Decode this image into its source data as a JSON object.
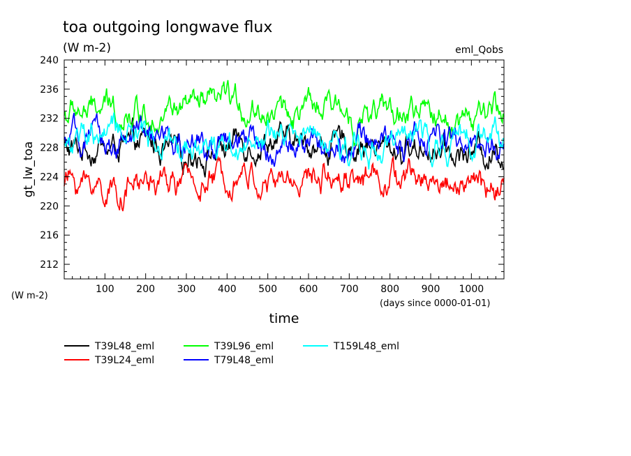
{
  "chart_data": {
    "type": "line",
    "title": "toa outgoing longwave flux",
    "subtitle": "(W m-2)",
    "experiment_label": "eml_Qobs",
    "ylabel": "gt_lw_toa",
    "yunits": "(W m-2)",
    "xlabel": "time",
    "xunits": "(days since 0000-01-01)",
    "xlim": [
      0,
      1080
    ],
    "ylim": [
      210,
      240
    ],
    "xticks": [
      100,
      200,
      300,
      400,
      500,
      600,
      700,
      800,
      900,
      1000
    ],
    "yticks": [
      212,
      216,
      220,
      224,
      228,
      232,
      236,
      240
    ],
    "grid": false,
    "legend_placement": "bottom",
    "series": [
      {
        "name": "T39L48_eml",
        "color": "#000000",
        "mean": 228.0,
        "approx_values": [
          {
            "x": 0,
            "y": 228
          },
          {
            "x": 100,
            "y": 228
          },
          {
            "x": 200,
            "y": 228
          },
          {
            "x": 300,
            "y": 228
          },
          {
            "x": 400,
            "y": 228
          },
          {
            "x": 500,
            "y": 228
          },
          {
            "x": 600,
            "y": 228
          },
          {
            "x": 700,
            "y": 228
          },
          {
            "x": 800,
            "y": 228
          },
          {
            "x": 900,
            "y": 228
          },
          {
            "x": 1000,
            "y": 228
          },
          {
            "x": 1080,
            "y": 228
          }
        ]
      },
      {
        "name": "T39L24_eml",
        "color": "#ff0000",
        "mean": 223.0,
        "approx_values": [
          {
            "x": 0,
            "y": 223.5
          },
          {
            "x": 100,
            "y": 222.5
          },
          {
            "x": 200,
            "y": 223
          },
          {
            "x": 300,
            "y": 222.5
          },
          {
            "x": 400,
            "y": 223.5
          },
          {
            "x": 500,
            "y": 222
          },
          {
            "x": 600,
            "y": 223
          },
          {
            "x": 700,
            "y": 224
          },
          {
            "x": 800,
            "y": 223
          },
          {
            "x": 900,
            "y": 223
          },
          {
            "x": 1000,
            "y": 223
          },
          {
            "x": 1080,
            "y": 223
          }
        ]
      },
      {
        "name": "T39L96_eml",
        "color": "#00ff00",
        "mean": 232.8,
        "approx_values": [
          {
            "x": 0,
            "y": 232.5
          },
          {
            "x": 100,
            "y": 233
          },
          {
            "x": 200,
            "y": 233
          },
          {
            "x": 300,
            "y": 232.5
          },
          {
            "x": 400,
            "y": 233
          },
          {
            "x": 500,
            "y": 232.5
          },
          {
            "x": 600,
            "y": 233
          },
          {
            "x": 700,
            "y": 233
          },
          {
            "x": 800,
            "y": 232.5
          },
          {
            "x": 900,
            "y": 233
          },
          {
            "x": 1000,
            "y": 232.5
          },
          {
            "x": 1080,
            "y": 233
          }
        ]
      },
      {
        "name": "T79L48_eml",
        "color": "#0000ff",
        "mean": 228.5,
        "approx_values": [
          {
            "x": 0,
            "y": 228.5
          },
          {
            "x": 100,
            "y": 228.5
          },
          {
            "x": 200,
            "y": 229
          },
          {
            "x": 300,
            "y": 228.5
          },
          {
            "x": 400,
            "y": 228.5
          },
          {
            "x": 500,
            "y": 228
          },
          {
            "x": 600,
            "y": 228.5
          },
          {
            "x": 700,
            "y": 228.5
          },
          {
            "x": 800,
            "y": 228.5
          },
          {
            "x": 900,
            "y": 228.5
          },
          {
            "x": 1000,
            "y": 228.5
          },
          {
            "x": 1080,
            "y": 228.5
          }
        ]
      },
      {
        "name": "T159L48_eml",
        "color": "#00ffff",
        "mean": 229.0,
        "approx_values": [
          {
            "x": 0,
            "y": 229
          },
          {
            "x": 100,
            "y": 229
          },
          {
            "x": 200,
            "y": 229
          },
          {
            "x": 300,
            "y": 229
          },
          {
            "x": 400,
            "y": 229
          },
          {
            "x": 500,
            "y": 229
          },
          {
            "x": 600,
            "y": 229
          },
          {
            "x": 700,
            "y": 229
          },
          {
            "x": 800,
            "y": 229
          },
          {
            "x": 900,
            "y": 229
          },
          {
            "x": 1000,
            "y": 229
          },
          {
            "x": 1080,
            "y": 229
          }
        ]
      }
    ]
  }
}
